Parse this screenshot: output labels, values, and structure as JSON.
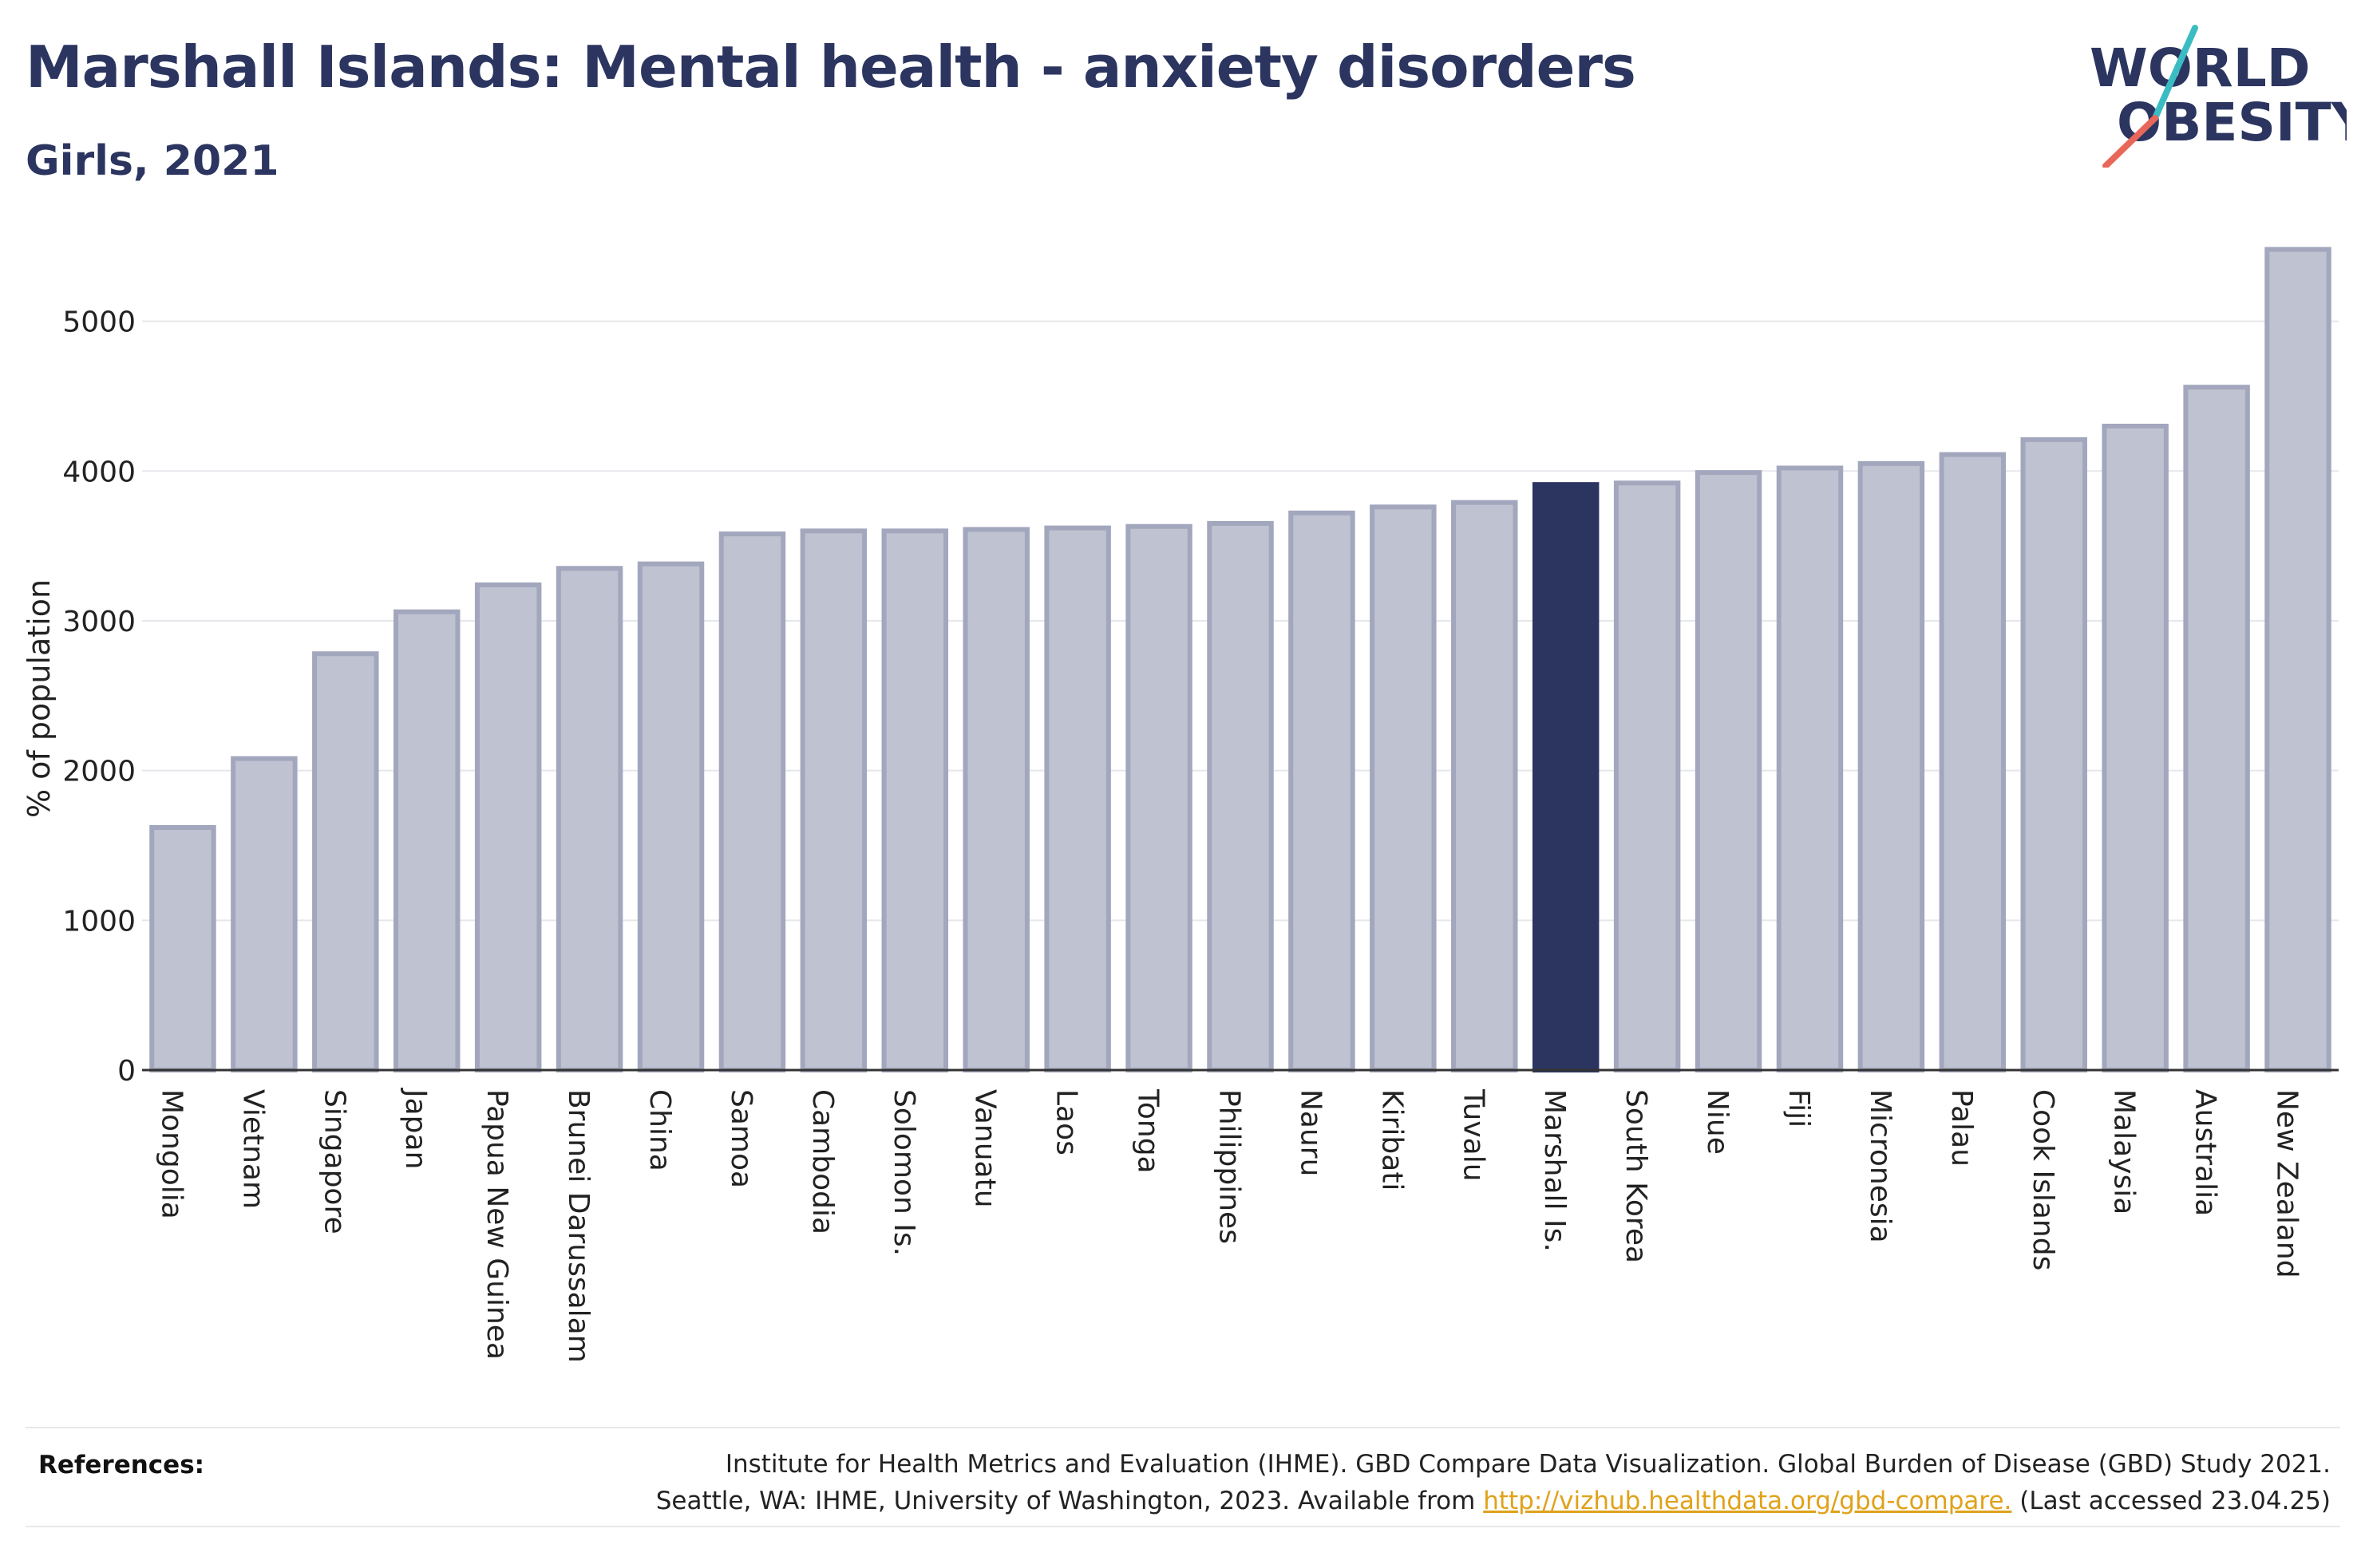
{
  "header": {
    "title": "Marshall Islands: Mental health - anxiety disorders",
    "subtitle": "Girls, 2021"
  },
  "logo": {
    "line1": "WORLD",
    "line2": "OBESITY",
    "colors": {
      "text": "#2b3560",
      "slash_teal": "#3bbcc2",
      "slash_red": "#e8665a"
    }
  },
  "chart_data": {
    "type": "bar",
    "title": "Marshall Islands: Mental health - anxiety disorders",
    "subtitle": "Girls, 2021",
    "ylabel": "% of population",
    "xlabel": "",
    "ylim": [
      0,
      5600
    ],
    "yticks": [
      0,
      1000,
      2000,
      3000,
      4000,
      5000
    ],
    "grid": true,
    "highlight": "Marshall Is.",
    "colors": {
      "bar": "#bfc2d0",
      "bar_border": "#a2a7bd",
      "highlight": "#2b3560",
      "grid": "#e6e7ec",
      "axis": "#333333"
    },
    "categories": [
      "Mongolia",
      "Vietnam",
      "Singapore",
      "Japan",
      "Papua New Guinea",
      "Brunei Darussalam",
      "China",
      "Samoa",
      "Cambodia",
      "Solomon Is.",
      "Vanuatu",
      "Laos",
      "Tonga",
      "Philippines",
      "Nauru",
      "Kiribati",
      "Tuvalu",
      "Marshall Is.",
      "South Korea",
      "Niue",
      "Fiji",
      "Micronesia",
      "Palau",
      "Cook Islands",
      "Malaysia",
      "Australia",
      "New Zealand"
    ],
    "values": [
      1620,
      2080,
      2780,
      3060,
      3240,
      3350,
      3380,
      3580,
      3600,
      3600,
      3610,
      3620,
      3630,
      3650,
      3720,
      3760,
      3790,
      3910,
      3920,
      3990,
      4020,
      4050,
      4110,
      4210,
      4300,
      4560,
      5480
    ]
  },
  "references": {
    "label": "References:",
    "line1": "Institute for Health Metrics and Evaluation (IHME). GBD Compare Data Visualization. Global Burden of Disease (GBD) Study 2021.",
    "line2_prefix": "Seattle, WA: IHME, University of Washington, 2023. Available from ",
    "link": "http://vizhub.healthdata.org/gbd-compare.",
    "line2_suffix": " (Last accessed 23.04.25)"
  }
}
